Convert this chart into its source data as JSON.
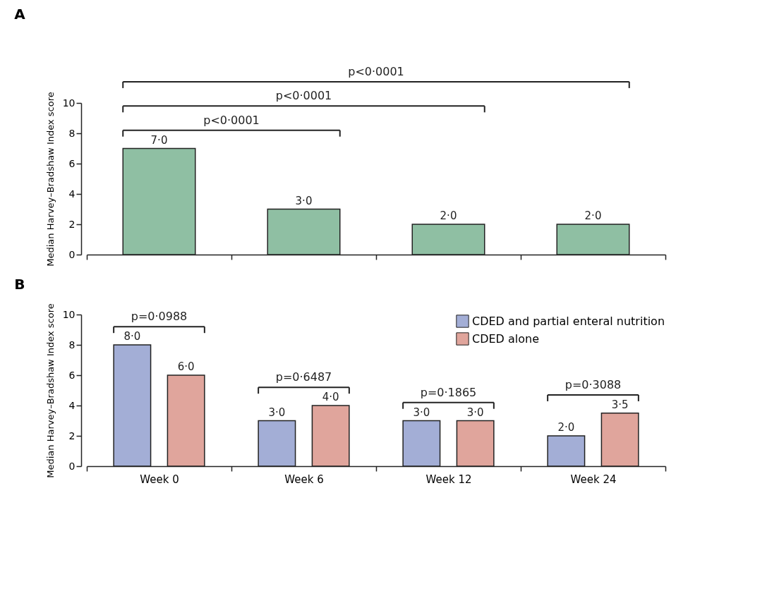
{
  "chart_data": [
    {
      "type": "bar",
      "title": "A",
      "ylabel": "Median Harvey–Bradshaw Index score",
      "categories": [
        null,
        null,
        null,
        null
      ],
      "values": [
        7,
        3,
        2,
        2
      ],
      "color": "#8fbfa3",
      "value_labels": [
        "7·0",
        "3·0",
        "2·0",
        "2·0"
      ],
      "ylim": [
        0,
        10
      ],
      "yticks": [
        0,
        2,
        4,
        6,
        8,
        10
      ],
      "tick_labels": "y",
      "annotations": [
        "p<0·0001",
        "p<0·0001",
        "p<0·0001"
      ]
    },
    {
      "type": "bar",
      "title": "B",
      "ylabel": "Median Harvey–Bradshaw Index score",
      "categories": [
        "Week 0",
        "Week 6",
        "Week 12",
        "Week 24"
      ],
      "series": [
        {
          "name": "CDED and partial enteral nutrition",
          "color": "#a3aed6",
          "values": [
            8,
            3,
            3,
            2
          ],
          "value_labels": [
            "8·0",
            "3·0",
            "3·0",
            "2·0"
          ]
        },
        {
          "name": "CDED alone",
          "color": "#e0a59c",
          "values": [
            6,
            4,
            3,
            3.5
          ],
          "value_labels": [
            "6·0",
            "4·0",
            "3·0",
            "3·5"
          ]
        }
      ],
      "ylim": [
        0,
        10
      ],
      "yticks": [
        0,
        2,
        4,
        6,
        8,
        10
      ],
      "legend": "top right",
      "annotations": [
        "p=0·0988",
        "p=0·6487",
        "p=0·1865",
        "p=0·3088"
      ]
    }
  ]
}
